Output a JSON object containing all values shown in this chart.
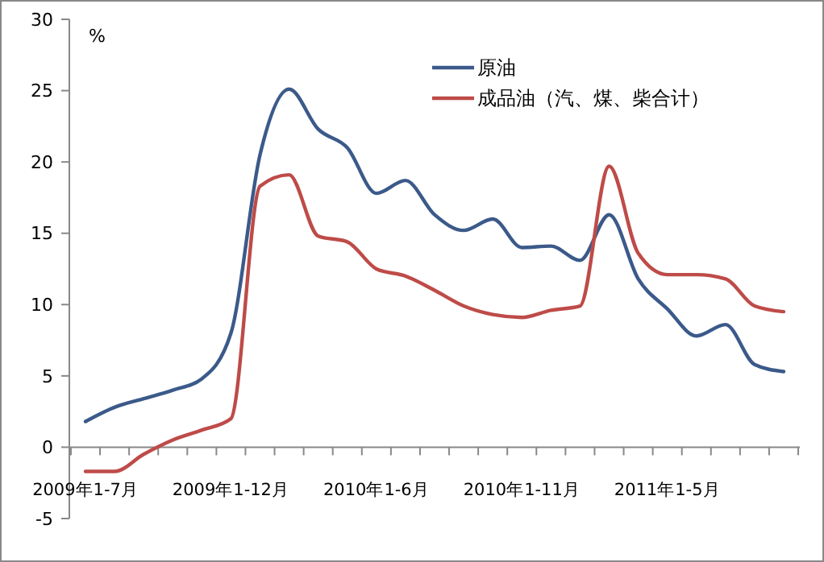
{
  "chart_data": {
    "type": "line",
    "ylabel": "%",
    "categories": [
      "2009年1-7月",
      null,
      null,
      null,
      null,
      "2009年1-12月",
      null,
      null,
      null,
      null,
      "2010年1-6月",
      null,
      null,
      null,
      null,
      "2010年1-11月",
      null,
      null,
      null,
      null,
      "2011年1-5月",
      null,
      null,
      null,
      null
    ],
    "series": [
      {
        "name": "原油",
        "color": "#3b5a8a",
        "values": [
          1.8,
          2.8,
          3.4,
          4.0,
          4.8,
          8.0,
          20.5,
          25.1,
          22.3,
          21.0,
          17.8,
          18.7,
          16.3,
          15.2,
          16.0,
          14.0,
          14.1,
          13.1,
          16.3,
          11.8,
          9.7,
          7.8,
          8.6,
          5.8,
          5.3
        ]
      },
      {
        "name": "成品油（汽、煤、柴合计）",
        "color": "#be4b48",
        "values": [
          -1.7,
          -1.7,
          -0.5,
          0.5,
          1.2,
          2.0,
          18.3,
          19.1,
          14.8,
          14.4,
          12.5,
          12.0,
          11.0,
          9.9,
          9.3,
          9.1,
          9.6,
          9.9,
          19.7,
          13.6,
          12.1,
          12.1,
          11.8,
          9.9,
          9.5
        ]
      }
    ],
    "ylim": [
      -5,
      30
    ],
    "yticks": [
      -5,
      0,
      5,
      10,
      15,
      20,
      25,
      30
    ],
    "grid": false,
    "legend": "top right"
  }
}
